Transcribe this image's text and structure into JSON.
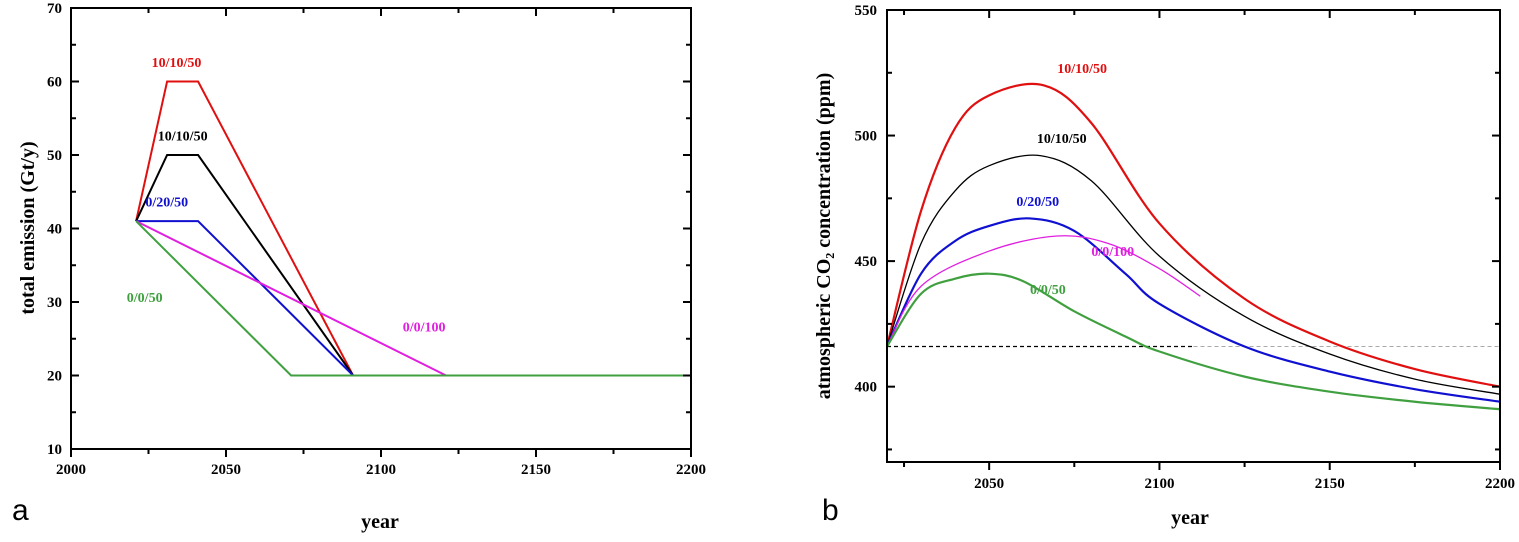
{
  "chart_data": [
    {
      "type": "line",
      "panel": "a",
      "xlabel": "year",
      "ylabel": "total emission (Gt/y)",
      "xlim": [
        2000,
        2200
      ],
      "ylim": [
        10,
        70
      ],
      "xticks": [
        2000,
        2050,
        2100,
        2150,
        2200
      ],
      "yticks": [
        10,
        20,
        30,
        40,
        50,
        60,
        70
      ],
      "grid": false,
      "series": [
        {
          "name": "10/10/50",
          "color": "#e01010",
          "x": [
            2021,
            2031,
            2041,
            2091,
            2200
          ],
          "y": [
            41,
            60,
            60,
            20,
            20
          ]
        },
        {
          "name": "10/10/50",
          "color": "#000000",
          "x": [
            2021,
            2031,
            2041,
            2091,
            2200
          ],
          "y": [
            41,
            50,
            50,
            20,
            20
          ]
        },
        {
          "name": "0/20/50",
          "color": "#1010d0",
          "x": [
            2021,
            2041,
            2091,
            2200
          ],
          "y": [
            41,
            41,
            20,
            20
          ]
        },
        {
          "name": "0/0/100",
          "color": "#e020e0",
          "x": [
            2021,
            2121,
            2200
          ],
          "y": [
            41,
            20,
            20
          ]
        },
        {
          "name": "0/0/50",
          "color": "#40a040",
          "x": [
            2021,
            2071,
            2200
          ],
          "y": [
            41,
            20,
            20
          ]
        }
      ]
    },
    {
      "type": "line",
      "panel": "b",
      "xlabel": "year",
      "ylabel": "atmospheric CO₂ concentration  (ppm)",
      "xlim": [
        2020,
        2200
      ],
      "ylim": [
        370,
        550
      ],
      "xticks": [
        2050,
        2100,
        2150,
        2200
      ],
      "yticks": [
        400,
        450,
        500,
        550
      ],
      "grid": false,
      "reference_line": {
        "y": 416,
        "style": "dashed"
      },
      "series": [
        {
          "name": "10/10/50",
          "color": "#e01010",
          "x": [
            2020,
            2030,
            2040,
            2050,
            2066,
            2080,
            2100,
            2125,
            2150,
            2175,
            2200
          ],
          "y": [
            416,
            470,
            503,
            516,
            520,
            505,
            465,
            435,
            418,
            407,
            400
          ]
        },
        {
          "name": "10/10/50",
          "color": "#000000",
          "x": [
            2020,
            2030,
            2040,
            2050,
            2065,
            2080,
            2100,
            2125,
            2150,
            2175,
            2200
          ],
          "y": [
            416,
            457,
            478,
            488,
            492,
            482,
            452,
            428,
            413,
            403,
            397
          ]
        },
        {
          "name": "0/20/50",
          "color": "#1010d0",
          "x": [
            2020,
            2030,
            2040,
            2050,
            2062,
            2075,
            2090,
            2100,
            2125,
            2150,
            2175,
            2200
          ],
          "y": [
            416,
            445,
            458,
            464,
            467,
            462,
            445,
            433,
            416,
            406,
            399,
            394
          ]
        },
        {
          "name": "0/0/100",
          "color": "#e020e0",
          "x": [
            2020,
            2030,
            2050,
            2070,
            2085,
            2100,
            2112
          ],
          "y": [
            416,
            440,
            454,
            460,
            457,
            447,
            436
          ]
        },
        {
          "name": "0/0/50",
          "color": "#40a040",
          "x": [
            2020,
            2030,
            2040,
            2050,
            2060,
            2075,
            2090,
            2100,
            2125,
            2150,
            2175,
            2200
          ],
          "y": [
            416,
            437,
            443,
            445,
            442,
            430,
            420,
            414,
            404,
            398,
            394,
            391
          ]
        }
      ]
    }
  ]
}
